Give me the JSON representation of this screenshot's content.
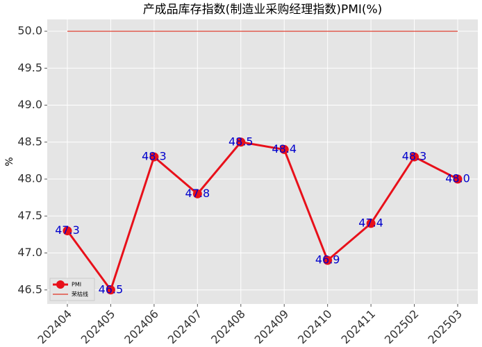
{
  "chart_data": {
    "type": "line",
    "title": "产成品库存指数(制造业采购经理指数)PMI(%)",
    "y_label": "%",
    "categories": [
      "202404",
      "202405",
      "202406",
      "202407",
      "202408",
      "202409",
      "202410",
      "202411",
      "202502",
      "202503"
    ],
    "series": [
      {
        "name": "PMI",
        "color": "#e8101a",
        "values": [
          47.3,
          46.5,
          48.3,
          47.8,
          48.5,
          48.4,
          46.9,
          47.4,
          48.3,
          48.0
        ],
        "value_labels": [
          "47.3",
          "46.5",
          "48.3",
          "47.8",
          "48.5",
          "48.4",
          "46.9",
          "47.4",
          "48.3",
          "48.0"
        ],
        "label_color": "#0000cc"
      }
    ],
    "reference_line": {
      "name": "荣枯线",
      "value": 50,
      "color": "#e03020"
    },
    "ylim": [
      46.31,
      50.16
    ],
    "yticks": [
      46.5,
      {
        "value": 47,
        "label": "47.0"
      },
      47.5,
      {
        "value": 48,
        "label": "48.0"
      },
      48.5,
      {
        "value": 49,
        "label": "49.0"
      },
      49.5,
      {
        "value": 50,
        "label": "50.0"
      }
    ],
    "grid": true,
    "legend": "lower left"
  }
}
